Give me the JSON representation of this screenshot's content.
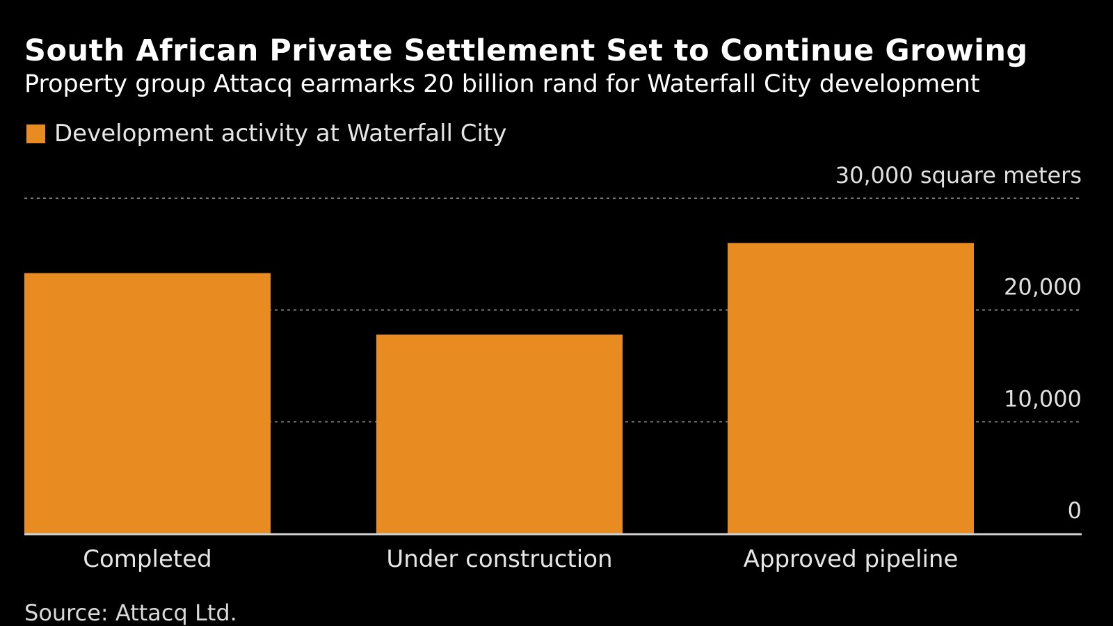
{
  "header": {
    "title": "South African Private Settlement Set to Continue Growing",
    "subtitle": "Property group Attacq earmarks 20 billion rand for Waterfall City development"
  },
  "legend": {
    "label": "Development activity at Waterfall City"
  },
  "footer": {
    "source": "Source: Attacq Ltd."
  },
  "colors": {
    "background": "#000000",
    "bar": "#e88c22",
    "grid": "#7a7a7a",
    "axis": "#d0d0d0",
    "text": "#ffffff"
  },
  "chart_data": {
    "type": "bar",
    "title": "South African Private Settlement Set to Continue Growing",
    "subtitle": "Property group Attacq earmarks 20 billion rand for Waterfall City development",
    "categories": [
      "Completed",
      "Under construction",
      "Approved pipeline"
    ],
    "series": [
      {
        "name": "Development activity at Waterfall City",
        "values": [
          23300,
          17800,
          26000
        ]
      }
    ],
    "ylim": [
      0,
      30000
    ],
    "yticks": [
      0,
      10000,
      20000,
      30000
    ],
    "ytick_labels": [
      "0",
      "10,000",
      "20,000",
      "30,000 square meters"
    ],
    "xlabel": "",
    "ylabel": "",
    "grid": true,
    "y_axis_side": "right",
    "legend_position": "top-left"
  }
}
